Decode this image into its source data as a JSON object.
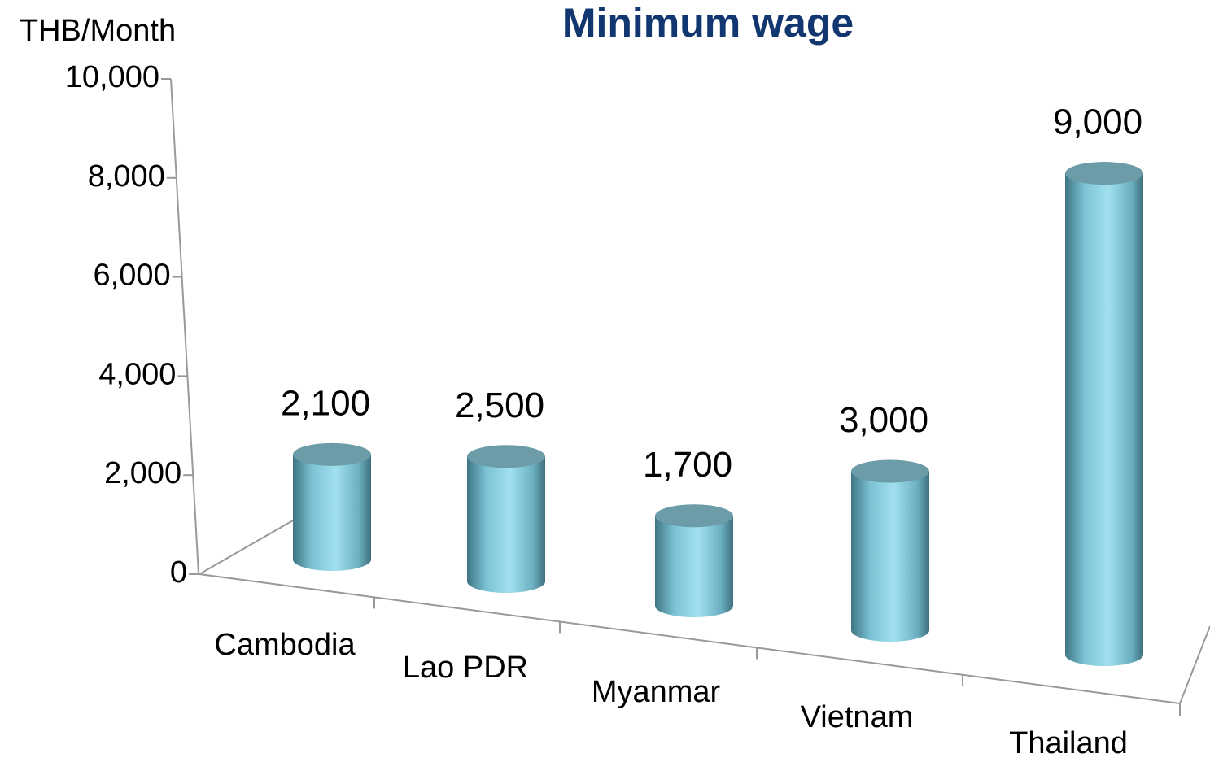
{
  "chart_data": {
    "type": "bar",
    "title": "Minimum wage",
    "y_axis_label": "THB/Month",
    "categories": [
      "Cambodia",
      "Lao PDR",
      "Myanmar",
      "Vietnam",
      "Thailand"
    ],
    "values": [
      2100,
      2500,
      1700,
      3000,
      9000
    ],
    "value_labels": [
      "2,100",
      "2,500",
      "1,700",
      "3,000",
      "9,000"
    ],
    "color": "#8fd3e6",
    "ylim": [
      0,
      10000
    ],
    "yticks": [
      0,
      {
        "value": 2000,
        "label": "2,000"
      },
      {
        "value": 4000,
        "label": "4,000"
      },
      {
        "value": 6000,
        "label": "6,000"
      },
      {
        "value": 8000,
        "label": "8,000"
      },
      {
        "value": 10000,
        "label": "10,000"
      }
    ]
  }
}
